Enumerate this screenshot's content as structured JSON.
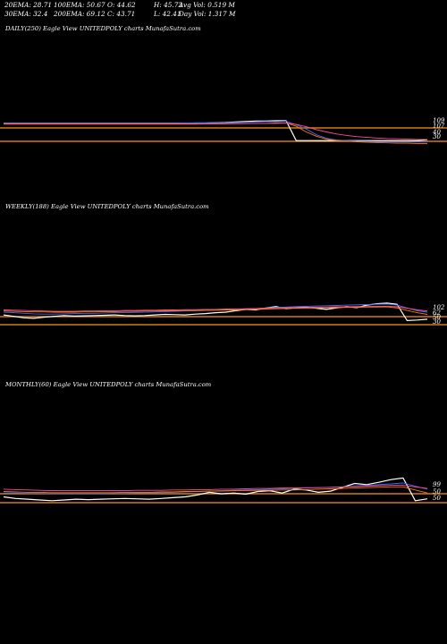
{
  "header": {
    "rows": [
      [
        "20EMA: 28.71",
        "100EMA: 50.67",
        "O: 44.62",
        "H: 45.72",
        "Avg Vol: 0.519 M"
      ],
      [
        "30EMA: 32.4",
        "200EMA: 69.12",
        "C: 43.71",
        "L: 42.41",
        "Day Vol: 1.317 M"
      ]
    ]
  },
  "panels": {
    "daily": {
      "title": "DAILY(250) Eagle  View  UNITEDPOLY charts MunafaSutra.com",
      "right_labels": [
        "109",
        "107",
        "40",
        "30"
      ]
    },
    "weekly": {
      "title": "WEEKLY(188) Eagle  View  UNITEDPOLY charts MunafaSutra.com",
      "right_labels": [
        "102",
        "62",
        "50",
        "30"
      ]
    },
    "monthly": {
      "title": "MONTHLY(60) Eagle  View  UNITEDPOLY charts MunafaSutra.com",
      "right_labels": [
        "99",
        "50",
        "50"
      ]
    }
  },
  "chart_data": [
    {
      "type": "line",
      "title": "DAILY(250) Eagle  View  UNITEDPOLY charts MunafaSutra.com",
      "axis_labels_right": [
        109,
        107,
        40,
        30
      ],
      "grid": false,
      "series": [
        {
          "color": "#ffffff",
          "values": [
            100,
            100,
            100,
            100,
            100,
            100,
            100,
            100,
            100,
            100,
            100,
            100,
            100,
            100,
            100,
            100,
            100,
            100,
            100,
            101,
            101,
            102,
            103,
            105,
            106,
            108,
            108,
            109,
            109,
            40,
            40,
            40,
            40,
            40,
            40,
            40,
            40,
            40,
            40,
            40,
            40,
            40,
            43
          ]
        },
        {
          "color": "#3a6cff",
          "values": [
            100,
            100,
            100,
            100,
            100,
            100,
            100,
            100,
            100,
            100,
            100,
            100,
            100,
            100,
            100,
            100,
            100,
            100,
            101,
            101,
            101,
            102,
            102,
            103,
            104,
            105,
            106,
            106,
            107,
            95,
            80,
            60,
            48,
            42,
            40,
            38,
            37,
            36,
            36,
            35,
            35,
            35,
            35
          ]
        },
        {
          "color": "#ff7a00",
          "values": [
            98,
            98,
            98,
            98,
            98,
            98,
            98,
            98,
            98,
            98,
            98,
            98,
            98,
            98,
            98,
            98,
            98,
            98,
            98,
            98,
            98,
            99,
            99,
            99,
            100,
            100,
            100,
            101,
            101,
            90,
            70,
            55,
            45,
            40,
            38,
            36,
            34,
            33,
            32,
            31,
            31,
            30,
            30
          ]
        },
        {
          "color": "#ff4d9a",
          "values": [
            97,
            97,
            97,
            97,
            97,
            97,
            97,
            97,
            97,
            97,
            97,
            97,
            97,
            97,
            97,
            97,
            97,
            97,
            97,
            97,
            98,
            98,
            98,
            99,
            99,
            100,
            100,
            100,
            101,
            96,
            88,
            78,
            70,
            63,
            58,
            54,
            51,
            49,
            47,
            46,
            45,
            44,
            44
          ]
        }
      ]
    },
    {
      "type": "line",
      "title": "WEEKLY(188) Eagle  View  UNITEDPOLY charts MunafaSutra.com",
      "axis_labels_right": [
        102,
        62,
        50,
        30
      ],
      "grid": false,
      "series": [
        {
          "color": "#ffffff",
          "values": [
            60,
            55,
            50,
            48,
            52,
            55,
            58,
            56,
            57,
            58,
            59,
            60,
            58,
            57,
            58,
            60,
            62,
            61,
            60,
            63,
            65,
            68,
            70,
            75,
            80,
            78,
            85,
            90,
            82,
            86,
            88,
            84,
            80,
            85,
            90,
            86,
            95,
            100,
            102,
            98,
            40,
            42,
            45
          ]
        },
        {
          "color": "#3a6cff",
          "values": [
            70,
            68,
            66,
            64,
            63,
            63,
            64,
            65,
            66,
            66,
            67,
            68,
            68,
            69,
            70,
            71,
            72,
            73,
            74,
            75,
            76,
            77,
            78,
            80,
            82,
            83,
            85,
            87,
            88,
            90,
            91,
            92,
            93,
            94,
            95,
            96,
            97,
            98,
            99,
            95,
            85,
            75,
            70
          ]
        },
        {
          "color": "#ff4d9a",
          "values": [
            78,
            77,
            76,
            75,
            74,
            73,
            73,
            73,
            74,
            74,
            75,
            75,
            76,
            76,
            77,
            77,
            78,
            78,
            79,
            79,
            80,
            80,
            81,
            81,
            82,
            83,
            84,
            85,
            86,
            87,
            87,
            88,
            88,
            89,
            89,
            90,
            90,
            91,
            91,
            89,
            84,
            78,
            74
          ]
        },
        {
          "color": "#ff7a00",
          "values": [
            74,
            73,
            72,
            71,
            71,
            70,
            70,
            70,
            71,
            71,
            72,
            72,
            73,
            73,
            74,
            74,
            75,
            75,
            76,
            76,
            77,
            77,
            78,
            78,
            79,
            80,
            81,
            82,
            83,
            84,
            84,
            85,
            86,
            86,
            87,
            87,
            88,
            88,
            89,
            85,
            76,
            68,
            62
          ]
        }
      ]
    },
    {
      "type": "line",
      "title": "MONTHLY(60) Eagle  View  UNITEDPOLY charts MunafaSutra.com",
      "axis_labels_right": [
        99,
        50,
        50
      ],
      "grid": false,
      "series": [
        {
          "color": "#ffffff",
          "values": [
            50,
            46,
            44,
            42,
            40,
            42,
            44,
            43,
            44,
            45,
            46,
            45,
            44,
            46,
            48,
            50,
            55,
            62,
            58,
            60,
            57,
            64,
            66,
            60,
            70,
            68,
            62,
            65,
            75,
            85,
            82,
            88,
            95,
            99,
            40,
            45
          ]
        },
        {
          "color": "#3a6cff",
          "values": [
            60,
            60,
            59,
            59,
            58,
            58,
            58,
            58,
            58,
            59,
            59,
            60,
            60,
            61,
            62,
            63,
            64,
            65,
            66,
            67,
            68,
            69,
            70,
            71,
            72,
            73,
            74,
            75,
            76,
            78,
            80,
            82,
            84,
            86,
            78,
            70
          ]
        },
        {
          "color": "#ff4d9a",
          "values": [
            70,
            69,
            68,
            67,
            66,
            66,
            66,
            66,
            66,
            66,
            66,
            67,
            67,
            67,
            68,
            68,
            69,
            69,
            70,
            70,
            71,
            72,
            72,
            73,
            73,
            74,
            74,
            75,
            76,
            77,
            78,
            79,
            80,
            80,
            76,
            72
          ]
        },
        {
          "color": "#ff7a00",
          "values": [
            64,
            63,
            62,
            62,
            61,
            61,
            61,
            61,
            61,
            61,
            62,
            62,
            62,
            63,
            63,
            64,
            64,
            65,
            65,
            66,
            66,
            67,
            67,
            68,
            68,
            69,
            70,
            71,
            72,
            73,
            74,
            75,
            76,
            76,
            68,
            60
          ]
        }
      ]
    }
  ]
}
